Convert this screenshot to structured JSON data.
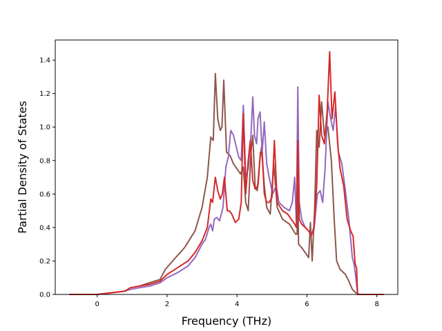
{
  "chart_data": {
    "type": "line",
    "title": "",
    "xlabel": "Frequency (THz)",
    "ylabel": "Partial Density of States",
    "xlim": [
      -1.2,
      8.6
    ],
    "ylim": [
      0.0,
      1.52
    ],
    "xticks": [
      0,
      2,
      4,
      6,
      8
    ],
    "yticks": [
      0.0,
      0.2,
      0.4,
      0.6,
      0.8,
      1.0,
      1.2,
      1.4
    ],
    "xtick_labels": [
      "0",
      "2",
      "4",
      "6",
      "8"
    ],
    "ytick_labels": [
      "0.0",
      "0.2",
      "0.4",
      "0.6",
      "0.8",
      "1.0",
      "1.2",
      "1.4"
    ],
    "grid": false,
    "legend": "none",
    "series": [
      {
        "color": "#8c564b",
        "points": [
          [
            -0.8,
            0.0
          ],
          [
            0.0,
            0.0
          ],
          [
            0.4,
            0.01
          ],
          [
            0.8,
            0.02
          ],
          [
            0.95,
            0.04
          ],
          [
            1.2,
            0.05
          ],
          [
            1.5,
            0.07
          ],
          [
            1.8,
            0.09
          ],
          [
            1.95,
            0.15
          ],
          [
            2.2,
            0.21
          ],
          [
            2.5,
            0.28
          ],
          [
            2.8,
            0.38
          ],
          [
            3.0,
            0.52
          ],
          [
            3.15,
            0.7
          ],
          [
            3.25,
            0.94
          ],
          [
            3.32,
            0.92
          ],
          [
            3.38,
            1.32
          ],
          [
            3.45,
            1.05
          ],
          [
            3.52,
            0.98
          ],
          [
            3.57,
            1.0
          ],
          [
            3.62,
            1.28
          ],
          [
            3.7,
            0.85
          ],
          [
            3.8,
            0.83
          ],
          [
            3.9,
            0.78
          ],
          [
            4.0,
            0.75
          ],
          [
            4.1,
            0.72
          ],
          [
            4.18,
            0.76
          ],
          [
            4.25,
            0.55
          ],
          [
            4.32,
            0.5
          ],
          [
            4.4,
            0.85
          ],
          [
            4.45,
            0.95
          ],
          [
            4.52,
            0.64
          ],
          [
            4.58,
            0.62
          ],
          [
            4.65,
            0.8
          ],
          [
            4.7,
            0.88
          ],
          [
            4.78,
            0.65
          ],
          [
            4.85,
            0.52
          ],
          [
            4.95,
            0.48
          ],
          [
            5.05,
            0.78
          ],
          [
            5.15,
            0.52
          ],
          [
            5.3,
            0.45
          ],
          [
            5.5,
            0.42
          ],
          [
            5.62,
            0.38
          ],
          [
            5.68,
            0.36
          ],
          [
            5.72,
            0.36
          ],
          [
            5.74,
            0.65
          ],
          [
            5.76,
            0.3
          ],
          [
            5.85,
            0.28
          ],
          [
            5.95,
            0.25
          ],
          [
            6.05,
            0.22
          ],
          [
            6.1,
            0.43
          ],
          [
            6.15,
            0.2
          ],
          [
            6.22,
            0.5
          ],
          [
            6.28,
            0.98
          ],
          [
            6.35,
            0.88
          ],
          [
            6.42,
            1.15
          ],
          [
            6.5,
            0.95
          ],
          [
            6.6,
            1.0
          ],
          [
            6.7,
            0.8
          ],
          [
            6.78,
            0.45
          ],
          [
            6.85,
            0.2
          ],
          [
            6.95,
            0.15
          ],
          [
            7.1,
            0.12
          ],
          [
            7.2,
            0.08
          ],
          [
            7.3,
            0.03
          ],
          [
            7.4,
            0.01
          ],
          [
            7.5,
            0.0
          ],
          [
            8.2,
            0.0
          ]
        ]
      },
      {
        "color": "#9467bd",
        "points": [
          [
            -0.8,
            0.0
          ],
          [
            0.0,
            0.0
          ],
          [
            0.4,
            0.01
          ],
          [
            0.8,
            0.02
          ],
          [
            0.95,
            0.03
          ],
          [
            1.2,
            0.04
          ],
          [
            1.5,
            0.05
          ],
          [
            1.8,
            0.07
          ],
          [
            2.0,
            0.1
          ],
          [
            2.3,
            0.13
          ],
          [
            2.6,
            0.17
          ],
          [
            2.8,
            0.22
          ],
          [
            3.0,
            0.3
          ],
          [
            3.1,
            0.33
          ],
          [
            3.2,
            0.4
          ],
          [
            3.25,
            0.42
          ],
          [
            3.3,
            0.38
          ],
          [
            3.35,
            0.45
          ],
          [
            3.42,
            0.46
          ],
          [
            3.5,
            0.44
          ],
          [
            3.6,
            0.52
          ],
          [
            3.68,
            0.76
          ],
          [
            3.75,
            0.82
          ],
          [
            3.82,
            0.98
          ],
          [
            3.9,
            0.95
          ],
          [
            3.98,
            0.88
          ],
          [
            4.05,
            0.82
          ],
          [
            4.12,
            0.8
          ],
          [
            4.18,
            1.13
          ],
          [
            4.25,
            0.7
          ],
          [
            4.32,
            0.75
          ],
          [
            4.4,
            0.95
          ],
          [
            4.45,
            1.18
          ],
          [
            4.5,
            0.95
          ],
          [
            4.56,
            0.9
          ],
          [
            4.6,
            1.05
          ],
          [
            4.66,
            1.09
          ],
          [
            4.72,
            0.85
          ],
          [
            4.78,
            1.03
          ],
          [
            4.85,
            0.78
          ],
          [
            4.92,
            0.7
          ],
          [
            5.02,
            0.6
          ],
          [
            5.12,
            0.65
          ],
          [
            5.2,
            0.55
          ],
          [
            5.35,
            0.52
          ],
          [
            5.5,
            0.5
          ],
          [
            5.58,
            0.55
          ],
          [
            5.65,
            0.7
          ],
          [
            5.7,
            0.42
          ],
          [
            5.74,
            1.24
          ],
          [
            5.78,
            0.55
          ],
          [
            5.85,
            0.45
          ],
          [
            5.95,
            0.4
          ],
          [
            6.05,
            0.38
          ],
          [
            6.12,
            0.36
          ],
          [
            6.2,
            0.38
          ],
          [
            6.3,
            0.6
          ],
          [
            6.38,
            0.62
          ],
          [
            6.45,
            0.55
          ],
          [
            6.52,
            0.75
          ],
          [
            6.6,
            1.15
          ],
          [
            6.68,
            1.05
          ],
          [
            6.75,
            0.98
          ],
          [
            6.82,
            1.12
          ],
          [
            6.9,
            0.85
          ],
          [
            7.0,
            0.78
          ],
          [
            7.1,
            0.62
          ],
          [
            7.2,
            0.45
          ],
          [
            7.3,
            0.22
          ],
          [
            7.35,
            0.18
          ],
          [
            7.4,
            0.1
          ],
          [
            7.45,
            0.0
          ],
          [
            8.2,
            0.0
          ]
        ]
      },
      {
        "color": "#d62728",
        "points": [
          [
            -0.8,
            0.0
          ],
          [
            0.0,
            0.0
          ],
          [
            0.4,
            0.01
          ],
          [
            0.8,
            0.02
          ],
          [
            0.95,
            0.04
          ],
          [
            1.2,
            0.05
          ],
          [
            1.5,
            0.06
          ],
          [
            1.8,
            0.08
          ],
          [
            2.0,
            0.12
          ],
          [
            2.3,
            0.16
          ],
          [
            2.6,
            0.2
          ],
          [
            2.8,
            0.25
          ],
          [
            3.0,
            0.32
          ],
          [
            3.15,
            0.4
          ],
          [
            3.25,
            0.57
          ],
          [
            3.3,
            0.55
          ],
          [
            3.38,
            0.7
          ],
          [
            3.45,
            0.62
          ],
          [
            3.52,
            0.57
          ],
          [
            3.58,
            0.6
          ],
          [
            3.64,
            0.7
          ],
          [
            3.72,
            0.5
          ],
          [
            3.78,
            0.5
          ],
          [
            3.85,
            0.48
          ],
          [
            3.95,
            0.43
          ],
          [
            4.05,
            0.45
          ],
          [
            4.12,
            0.55
          ],
          [
            4.18,
            1.08
          ],
          [
            4.25,
            0.6
          ],
          [
            4.32,
            0.8
          ],
          [
            4.38,
            0.92
          ],
          [
            4.45,
            0.68
          ],
          [
            4.52,
            0.63
          ],
          [
            4.6,
            0.65
          ],
          [
            4.67,
            0.85
          ],
          [
            4.72,
            0.85
          ],
          [
            4.78,
            0.6
          ],
          [
            4.85,
            0.55
          ],
          [
            4.92,
            0.55
          ],
          [
            5.0,
            0.58
          ],
          [
            5.07,
            0.92
          ],
          [
            5.15,
            0.55
          ],
          [
            5.3,
            0.5
          ],
          [
            5.45,
            0.48
          ],
          [
            5.55,
            0.45
          ],
          [
            5.65,
            0.42
          ],
          [
            5.7,
            0.4
          ],
          [
            5.74,
            0.92
          ],
          [
            5.78,
            0.45
          ],
          [
            5.85,
            0.42
          ],
          [
            5.95,
            0.4
          ],
          [
            6.05,
            0.38
          ],
          [
            6.12,
            0.35
          ],
          [
            6.2,
            0.4
          ],
          [
            6.28,
            0.65
          ],
          [
            6.35,
            1.19
          ],
          [
            6.42,
            0.95
          ],
          [
            6.5,
            0.9
          ],
          [
            6.58,
            1.1
          ],
          [
            6.65,
            1.45
          ],
          [
            6.72,
            1.05
          ],
          [
            6.8,
            1.21
          ],
          [
            6.88,
            0.9
          ],
          [
            6.95,
            0.75
          ],
          [
            7.05,
            0.65
          ],
          [
            7.15,
            0.45
          ],
          [
            7.25,
            0.38
          ],
          [
            7.32,
            0.35
          ],
          [
            7.38,
            0.18
          ],
          [
            7.42,
            0.16
          ],
          [
            7.45,
            0.0
          ],
          [
            8.2,
            0.0
          ]
        ]
      }
    ]
  }
}
